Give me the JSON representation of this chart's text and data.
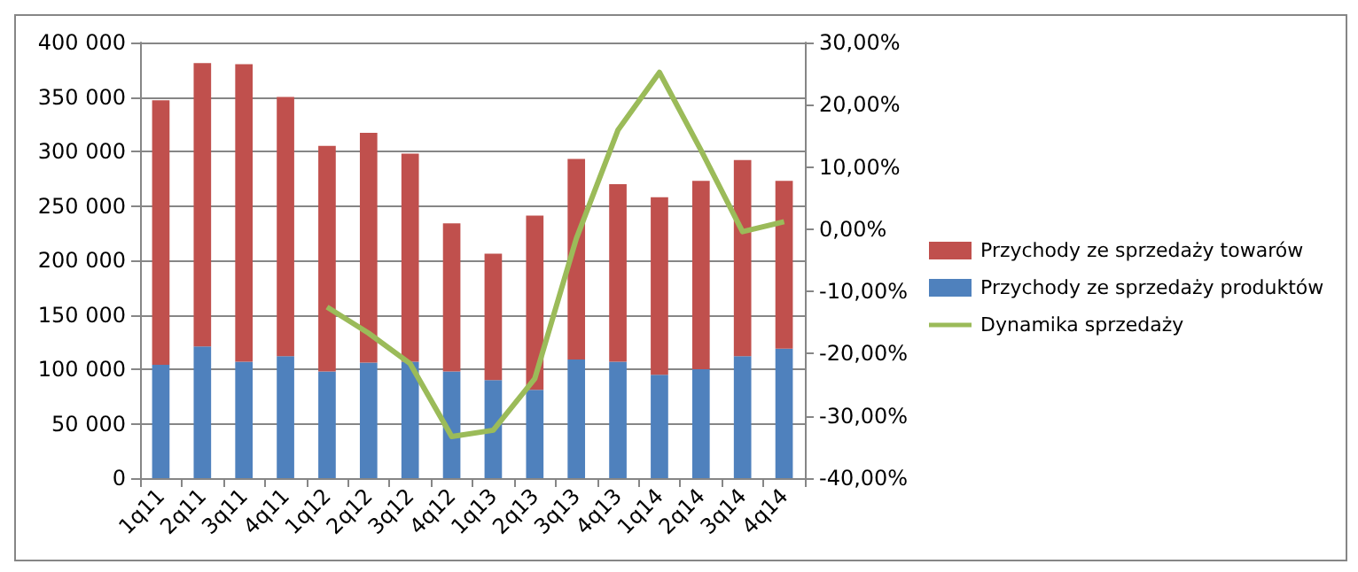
{
  "chart_data": {
    "type": "bar",
    "stacked": true,
    "categories": [
      "1q11",
      "2q11",
      "3q11",
      "4q11",
      "1q12",
      "2q12",
      "3q12",
      "4q12",
      "1q13",
      "2q13",
      "3q13",
      "4q13",
      "1q14",
      "2q14",
      "3q14",
      "4q14"
    ],
    "series": [
      {
        "name": "Przychody ze sprzedaży produktów",
        "color": "#4f81bd",
        "values": [
          104000,
          121000,
          107000,
          112000,
          98000,
          106000,
          107000,
          98000,
          90000,
          81000,
          109000,
          107000,
          95000,
          100000,
          112000,
          119000
        ]
      },
      {
        "name": "Przychody ze sprzedaży towarów",
        "color": "#c0504d",
        "values": [
          243000,
          260000,
          273000,
          238000,
          207000,
          211000,
          191000,
          136000,
          116000,
          160000,
          184000,
          163000,
          163000,
          173000,
          180000,
          154000
        ]
      },
      {
        "name": "Dynamika sprzedaży",
        "type": "line",
        "axis": "y2",
        "color": "#9bbb59",
        "values": [
          null,
          null,
          null,
          null,
          -12.5,
          -16.7,
          -21.6,
          -33.3,
          -32.3,
          -24,
          -1.5,
          15.9,
          25.2,
          12.7,
          -0.4,
          1.2
        ]
      }
    ],
    "ylim": [
      0,
      400000
    ],
    "yticks": [
      {
        "value": 0,
        "label": "0"
      },
      {
        "value": 50000,
        "label": "50 000"
      },
      {
        "value": 100000,
        "label": "100 000"
      },
      {
        "value": 150000,
        "label": "150 000"
      },
      {
        "value": 200000,
        "label": "200 000"
      },
      {
        "value": 250000,
        "label": "250 000"
      },
      {
        "value": 300000,
        "label": "300 000"
      },
      {
        "value": 350000,
        "label": "350 000"
      },
      {
        "value": 400000,
        "label": "400 000"
      }
    ],
    "y2lim": [
      -40,
      30
    ],
    "y2ticks": [
      {
        "value": -40,
        "label": "-40,00%"
      },
      {
        "value": -30,
        "label": "-30,00%"
      },
      {
        "value": -20,
        "label": "-20,00%"
      },
      {
        "value": -10,
        "label": "-10,00%"
      },
      {
        "value": 0,
        "label": "0,00%"
      },
      {
        "value": 10,
        "label": "10,00%"
      },
      {
        "value": 20,
        "label": "20,00%"
      },
      {
        "value": 30,
        "label": "30,00%"
      }
    ],
    "grid": "y",
    "legend": "right",
    "marker": "none"
  }
}
